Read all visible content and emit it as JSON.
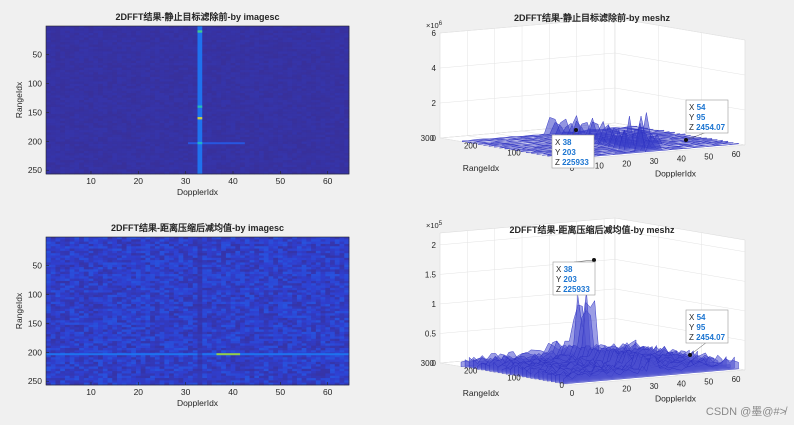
{
  "watermark": "CSDN @墨@#≯",
  "chart_data": [
    {
      "type": "heatmap",
      "title": "2DFFT结果-静止目标滤除前-by imagesc",
      "xlabel": "DopplerIdx",
      "ylabel": "RangeIdx",
      "xlim": [
        0.5,
        64.5
      ],
      "ylim": [
        0.5,
        256.5
      ],
      "xticks": [
        10,
        20,
        30,
        40,
        50,
        60
      ],
      "yticks": [
        50,
        100,
        150,
        200,
        250
      ],
      "colormap": [
        "#3a2d8f",
        "#2f3fd0",
        "#1e6cf0",
        "#1aa7d9",
        "#30c99a",
        "#8ccc4a",
        "#f0d03a"
      ],
      "background_level": 0.05,
      "hot_columns": [
        {
          "x": 33,
          "level": 0.35,
          "spots": [
            {
              "y": 10,
              "level": 0.7
            },
            {
              "y": 140,
              "level": 0.6
            },
            {
              "y": 160,
              "level": 0.95
            },
            {
              "y": 203,
              "level": 0.55
            }
          ]
        }
      ],
      "hot_rows": [
        {
          "y": 203,
          "x_from": 30,
          "x_to": 42,
          "level": 0.25
        }
      ]
    },
    {
      "type": "surface",
      "title": "2DFFT结果-静止目标滤除前-by meshz",
      "xlabel": "DopplerIdx",
      "ylabel": "RangeIdx",
      "zlabel": "",
      "exponent": "×10^6",
      "xlim": [
        0,
        64
      ],
      "ylim": [
        0,
        300
      ],
      "zlim": [
        0,
        6
      ],
      "xticks": [
        0,
        10,
        20,
        30,
        40,
        50,
        60
      ],
      "yticks": [
        100,
        200,
        300
      ],
      "zticks": [
        0,
        2,
        4,
        6
      ],
      "datatips": [
        {
          "X": "38",
          "Y": "203",
          "Z": "225933"
        },
        {
          "X": "54",
          "Y": "95",
          "Z": "2454.07"
        }
      ]
    },
    {
      "type": "heatmap",
      "title": "2DFFT结果-距离压缩后减均值-by imagesc",
      "xlabel": "DopplerIdx",
      "ylabel": "RangeIdx",
      "xlim": [
        0.5,
        64.5
      ],
      "ylim": [
        0.5,
        256.5
      ],
      "xticks": [
        10,
        20,
        30,
        40,
        50,
        60
      ],
      "yticks": [
        50,
        100,
        150,
        200,
        250
      ],
      "colormap": [
        "#3a2d8f",
        "#2f3fd0",
        "#1e6cf0",
        "#1aa7d9",
        "#30c99a",
        "#8ccc4a",
        "#f0d03a"
      ],
      "background_level": 0.15,
      "hot_columns": [
        {
          "x": 33,
          "level": 0.05,
          "spots": []
        }
      ],
      "hot_rows": [
        {
          "y": 203,
          "x_from": 0,
          "x_to": 64,
          "level": 0.35
        },
        {
          "y": 203,
          "x_from": 36,
          "x_to": 41,
          "level": 0.85
        }
      ]
    },
    {
      "type": "surface",
      "title": "2DFFT结果-距离压缩后减均值-by meshz",
      "xlabel": "DopplerIdx",
      "ylabel": "RangeIdx",
      "zlabel": "",
      "exponent": "×10^5",
      "xlim": [
        0,
        64
      ],
      "ylim": [
        0,
        300
      ],
      "zlim": [
        0,
        2.2
      ],
      "xticks": [
        0,
        10,
        20,
        30,
        40,
        50,
        60
      ],
      "yticks": [
        100,
        200,
        300
      ],
      "zticks": [
        0,
        0.5,
        1,
        1.5,
        2
      ],
      "datatips": [
        {
          "X": "38",
          "Y": "203",
          "Z": "225933"
        },
        {
          "X": "54",
          "Y": "95",
          "Z": "2454.07"
        }
      ]
    }
  ]
}
